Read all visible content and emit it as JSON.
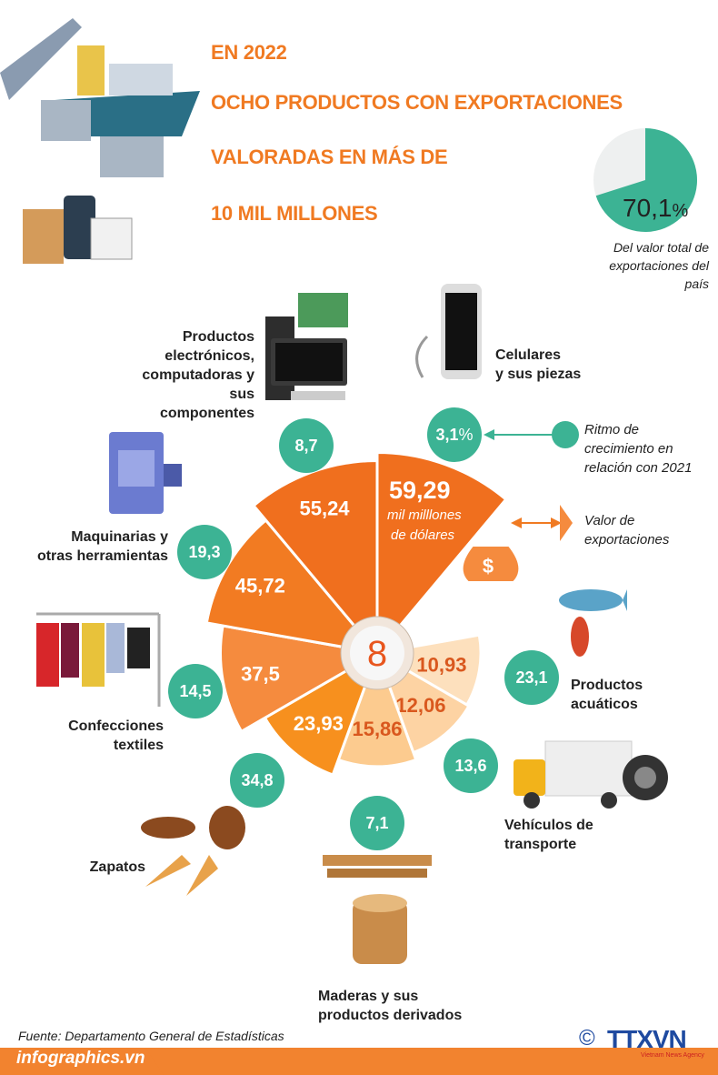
{
  "header": {
    "lines": [
      "EN 2022",
      "OCHO PRODUCTOS CON EXPORTACIONES",
      "VALORADAS EN MÁS DE",
      "10 MIL MILLONES"
    ]
  },
  "share": {
    "value": 70.1,
    "label": "70,1",
    "unit": "%",
    "caption": "Del valor total de exportaciones del país",
    "color": "#3cb394"
  },
  "legend": {
    "growth": "Ritmo de crecimiento en relación con 2021",
    "value": "Valor de exportaciones"
  },
  "center": "8",
  "unit_label": {
    "line1": "mil milllones",
    "line2": "de dólares"
  },
  "chart_data": {
    "type": "polar-area",
    "title": "",
    "unit": "mil millones de dólares",
    "categories": [
      "Celulares y sus piezas",
      "Productos acuáticos",
      "Vehículos de transporte",
      "Maderas y sus productos derivados",
      "Zapatos",
      "Confecciones textiles",
      "Maquinarias y otras herramientas",
      "Productos electrónicos, computadoras y sus componentes"
    ],
    "values": [
      59.29,
      10.93,
      12.06,
      15.86,
      23.93,
      37.5,
      45.72,
      55.24
    ],
    "value_labels": [
      "59,29",
      "10,93",
      "12,06",
      "15,86",
      "23,93",
      "37,5",
      "45,72",
      "55,24"
    ],
    "growth_percent": [
      3.1,
      23.1,
      13.6,
      7.1,
      34.8,
      14.5,
      19.3,
      8.7
    ],
    "growth_labels": [
      "3,1",
      "23,1",
      "13,6",
      "7,1",
      "34,8",
      "14,5",
      "19,3",
      "8,7"
    ],
    "colors": [
      "#f06f1e",
      "#fde0bd",
      "#fdd3a3",
      "#fccb8f",
      "#f7901e",
      "#f58b3e",
      "#f27b22",
      "#f06f1e"
    ]
  },
  "products": {
    "celulares": "Celulares\ny sus piezas",
    "acuaticos": "Productos\nacuáticos",
    "vehiculos": "Vehículos de\ntransporte",
    "maderas": "Maderas y sus\nproductos derivados",
    "zapatos": "Zapatos",
    "textiles": "Confecciones\ntextiles",
    "maquinarias": "Maquinarias y\notras herramientas",
    "electronicos": "Productos\nelectrónicos,\ncomputadoras y\nsus componentes"
  },
  "footer": {
    "source": "Fuente: Departamento General de Estadísticas",
    "site": "infographics.vn",
    "brand": "TTXVN",
    "brand_sub": "Vietnam News Agency",
    "copyright": "©"
  }
}
